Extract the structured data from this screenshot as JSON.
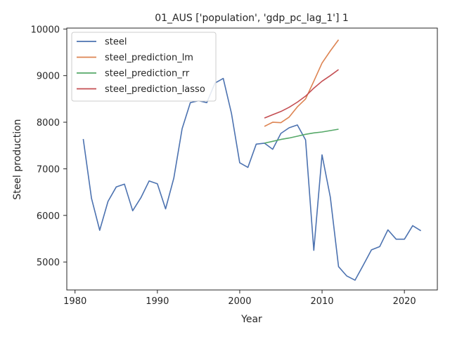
{
  "chart_data": {
    "type": "line",
    "title": "01_AUS ['population', 'gdp_pc_lag_1'] 1",
    "xlabel": "Year",
    "ylabel": "Steel production",
    "xlim": [
      1979,
      2024
    ],
    "ylim": [
      4400,
      10020
    ],
    "xticks": [
      1980,
      1990,
      2000,
      2010,
      2020
    ],
    "yticks": [
      5000,
      6000,
      7000,
      8000,
      9000,
      10000
    ],
    "grid": false,
    "legend_position": "top-left",
    "series": [
      {
        "name": "steel",
        "color": "#4c72b0",
        "x": [
          1981,
          1982,
          1983,
          1984,
          1985,
          1986,
          1987,
          1988,
          1989,
          1990,
          1991,
          1992,
          1993,
          1994,
          1995,
          1996,
          1997,
          1998,
          1999,
          2000,
          2001,
          2002,
          2003,
          2004,
          2005,
          2006,
          2007,
          2008,
          2009,
          2010,
          2011,
          2012,
          2013,
          2014,
          2015,
          2016,
          2017,
          2018,
          2019,
          2020,
          2021,
          2022
        ],
        "y": [
          7640,
          6370,
          5680,
          6300,
          6610,
          6670,
          6100,
          6380,
          6740,
          6680,
          6140,
          6800,
          7860,
          8420,
          8460,
          8420,
          8840,
          8940,
          8190,
          7130,
          7030,
          7530,
          7550,
          7420,
          7760,
          7880,
          7940,
          7620,
          5250,
          7300,
          6390,
          4900,
          4700,
          4610,
          4930,
          5260,
          5330,
          5690,
          5490,
          5490,
          5780,
          5670
        ]
      },
      {
        "name": "steel_prediction_lm",
        "color": "#dd8452",
        "x": [
          2003,
          2004,
          2005,
          2006,
          2007,
          2008,
          2009,
          2010,
          2011,
          2012
        ],
        "y": [
          7910,
          8000,
          7990,
          8110,
          8330,
          8500,
          8880,
          9270,
          9530,
          9770
        ]
      },
      {
        "name": "steel_prediction_rr",
        "color": "#55a868",
        "x": [
          2003,
          2004,
          2005,
          2006,
          2007,
          2008,
          2009,
          2010,
          2011,
          2012
        ],
        "y": [
          7550,
          7590,
          7630,
          7660,
          7700,
          7740,
          7770,
          7790,
          7820,
          7850
        ]
      },
      {
        "name": "steel_prediction_lasso",
        "color": "#c44e52",
        "x": [
          2003,
          2004,
          2005,
          2006,
          2007,
          2008,
          2009,
          2010,
          2011,
          2012
        ],
        "y": [
          8090,
          8160,
          8230,
          8320,
          8430,
          8560,
          8730,
          8880,
          9000,
          9130
        ]
      }
    ]
  }
}
